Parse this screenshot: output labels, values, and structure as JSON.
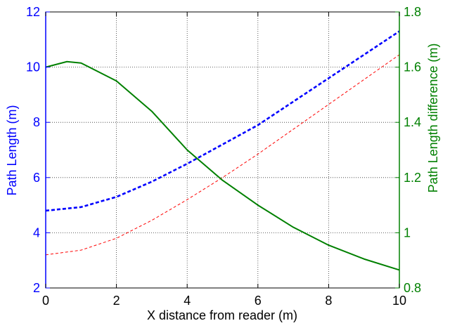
{
  "chart_data": {
    "type": "line",
    "title": "",
    "xlabel": "X distance from reader (m)",
    "ylabel_left": "Path Length (m)",
    "ylabel_right": "Path Length difference (m)",
    "xlim": [
      0,
      10
    ],
    "ylim_left": [
      2,
      12
    ],
    "ylim_right": [
      0.8,
      1.8
    ],
    "x_ticks": [
      "0",
      "2",
      "4",
      "6",
      "8",
      "10"
    ],
    "y_left_ticks": [
      "2",
      "4",
      "6",
      "8",
      "10",
      "12"
    ],
    "y_right_ticks": [
      "0.8",
      "1",
      "1.2",
      "1.4",
      "1.6",
      "1.8"
    ],
    "grid": true,
    "legend": "none",
    "colors": {
      "left_axis": "#0000ff",
      "right_axis": "#008000",
      "series_blue": "#0000ff",
      "series_red": "#ff0000",
      "series_green": "#008000",
      "grid": "#333333"
    },
    "series": [
      {
        "axis": "left",
        "color": "#0000ff",
        "style": "dashed-thick",
        "x": [
          0,
          1,
          2,
          3,
          4,
          5,
          6,
          7,
          8,
          9,
          10
        ],
        "y": [
          4.8,
          4.93,
          5.3,
          5.85,
          6.5,
          7.2,
          7.9,
          8.75,
          9.6,
          10.45,
          11.3
        ]
      },
      {
        "axis": "left",
        "color": "#ff0000",
        "style": "dashed-thin",
        "x": [
          0,
          1,
          2,
          3,
          4,
          5,
          6,
          7,
          8,
          9,
          10
        ],
        "y": [
          3.2,
          3.37,
          3.8,
          4.45,
          5.2,
          6.0,
          6.85,
          7.75,
          8.65,
          9.55,
          10.45
        ]
      },
      {
        "axis": "right",
        "color": "#008000",
        "style": "solid",
        "x": [
          0,
          0.6,
          1,
          2,
          3,
          4,
          5,
          6,
          7,
          8,
          9,
          10
        ],
        "y": [
          1.6,
          1.62,
          1.615,
          1.55,
          1.44,
          1.3,
          1.19,
          1.1,
          1.02,
          0.955,
          0.905,
          0.865
        ]
      }
    ]
  }
}
